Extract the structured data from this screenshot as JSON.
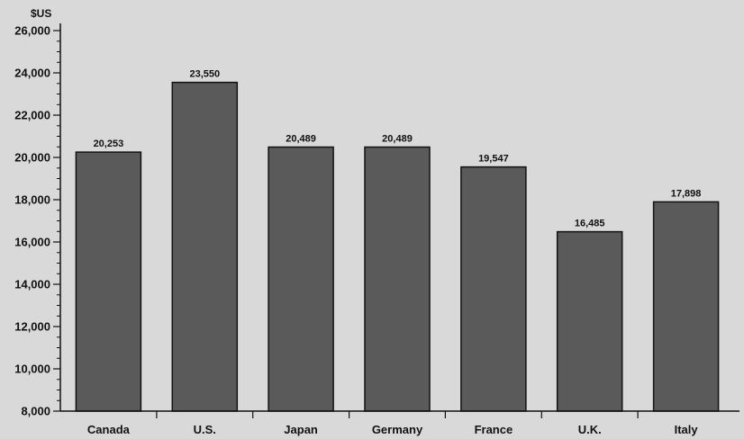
{
  "chart_data": {
    "type": "bar",
    "ylabel": "$US",
    "categories": [
      "Canada",
      "U.S.",
      "Japan",
      "Germany",
      "France",
      "U.K.",
      "Italy"
    ],
    "values": [
      20253,
      23550,
      20489,
      20489,
      19547,
      16485,
      17898
    ],
    "value_labels": [
      "20,253",
      "23,550",
      "20,489",
      "20,489",
      "19,547",
      "16,485",
      "17,898"
    ],
    "ylim": [
      8000,
      26000
    ],
    "yticks": [
      8000,
      10000,
      12000,
      14000,
      16000,
      18000,
      20000,
      22000,
      24000,
      26000
    ],
    "ytick_labels": [
      "8,000",
      "10,000",
      "12,000",
      "14,000",
      "16,000",
      "18,000",
      "20,000",
      "22,000",
      "24,000",
      "26,000"
    ],
    "grid": false,
    "colors": {
      "bar": "#5a5a5a",
      "bar_stroke": "#111111",
      "axis": "#111111",
      "background": "#d9d9d9"
    }
  }
}
